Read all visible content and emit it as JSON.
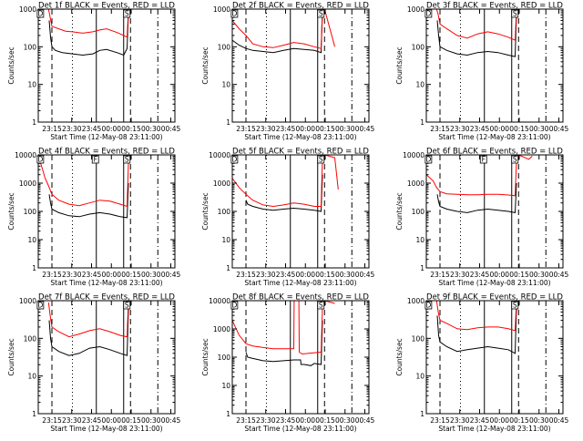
{
  "figure": {
    "ylabel": "Counts/sec",
    "xlabel": "Start Time (12-May-08 23:11:00)",
    "x_tick_labels": [
      "23:15",
      "23:30",
      "23:45",
      "00:00",
      "00:15",
      "00:30",
      "00:45"
    ],
    "y_tick_labels": [
      "1",
      "10",
      "100",
      "1000",
      "10000"
    ],
    "marker_labels": [
      "D",
      "F",
      "S"
    ],
    "colors": {
      "events": "#000000",
      "lld": "#ff0000",
      "axes": "#000000",
      "background": "#ffffff"
    }
  },
  "chart_data": [
    {
      "type": "line",
      "title": "Det 1f BLACK = Events, RED = LLD",
      "ylim": [
        1,
        1000
      ],
      "yscale": "log",
      "xlim_min": [
        0,
        40
      ],
      "markers_min": {
        "dashed": [
          4,
          27
        ],
        "dotted": [
          10,
          10
        ],
        "solid": [
          17,
          25
        ],
        "dashdot": [
          35
        ]
      },
      "series": [
        {
          "name": "BLACK = Events",
          "x": [
            3.2,
            3.6,
            4,
            5,
            7,
            10,
            13,
            16,
            18,
            20,
            23,
            25,
            26,
            26.4
          ],
          "values": [
            500,
            180,
            100,
            80,
            70,
            65,
            60,
            65,
            80,
            85,
            70,
            60,
            90,
            800
          ]
        },
        {
          "name": "RED = LLD",
          "x": [
            3,
            3.5,
            4,
            6,
            8,
            10,
            13,
            16,
            18,
            20,
            23,
            25,
            26,
            26.4
          ],
          "values": [
            1000,
            600,
            350,
            300,
            260,
            250,
            230,
            250,
            280,
            300,
            240,
            200,
            180,
            900
          ]
        }
      ]
    },
    {
      "type": "line",
      "title": "Det 2f BLACK = Events, RED = LLD",
      "ylim": [
        1,
        1000
      ],
      "yscale": "log",
      "xlim_min": [
        0,
        40
      ],
      "markers_min": {
        "dashed": [
          4,
          27
        ],
        "dotted": [
          10,
          10
        ],
        "solid": [
          17,
          25
        ],
        "dashdot": [
          35
        ]
      },
      "series": [
        {
          "name": "BLACK = Events",
          "x": [
            0,
            2,
            4,
            6,
            9,
            12,
            15,
            18,
            21,
            24,
            26,
            26.4
          ],
          "values": [
            150,
            110,
            90,
            80,
            75,
            70,
            80,
            90,
            85,
            80,
            70,
            900
          ]
        },
        {
          "name": "RED = LLD",
          "x": [
            0,
            2,
            4,
            6,
            9,
            12,
            15,
            18,
            21,
            24,
            26,
            26.4,
            27,
            30
          ],
          "values": [
            500,
            300,
            200,
            120,
            100,
            95,
            110,
            130,
            120,
            100,
            90,
            1000,
            1000,
            100
          ]
        }
      ]
    },
    {
      "type": "line",
      "title": "Det 3f BLACK = Events, RED = LLD",
      "ylim": [
        1,
        1000
      ],
      "yscale": "log",
      "xlim_min": [
        0,
        40
      ],
      "markers_min": {
        "dashed": [
          4,
          27
        ],
        "dotted": [
          10,
          10
        ],
        "solid": [
          17,
          25
        ],
        "dashdot": [
          35
        ]
      },
      "series": [
        {
          "name": "BLACK = Events",
          "x": [
            3.2,
            3.6,
            4,
            6,
            9,
            12,
            15,
            18,
            21,
            24,
            26,
            26.4
          ],
          "values": [
            500,
            200,
            100,
            80,
            65,
            60,
            70,
            75,
            70,
            60,
            55,
            800
          ]
        },
        {
          "name": "RED = LLD",
          "x": [
            3,
            3.5,
            4,
            6,
            9,
            12,
            15,
            18,
            21,
            24,
            26,
            26.4
          ],
          "values": [
            1000,
            700,
            400,
            300,
            200,
            170,
            220,
            250,
            220,
            180,
            150,
            1000
          ]
        }
      ]
    },
    {
      "type": "line",
      "title": "Det 4f BLACK = Events, RED = LLD",
      "ylim": [
        1,
        10000
      ],
      "yscale": "log",
      "xlim_min": [
        0,
        40
      ],
      "markers_min": {
        "dashed": [
          4,
          27
        ],
        "dotted": [
          10,
          10
        ],
        "solid": [
          17,
          25
        ],
        "dashdot": [
          35
        ]
      },
      "series": [
        {
          "name": "BLACK = Events",
          "x": [
            3.2,
            3.6,
            4,
            6,
            9,
            12,
            15,
            18,
            21,
            24,
            26,
            26.4
          ],
          "values": [
            400,
            200,
            120,
            90,
            70,
            65,
            80,
            90,
            80,
            65,
            60,
            1000
          ]
        },
        {
          "name": "RED = LLD",
          "x": [
            0,
            2,
            3,
            4,
            6,
            9,
            12,
            15,
            18,
            21,
            24,
            26,
            26.4
          ],
          "values": [
            10000,
            1500,
            800,
            400,
            250,
            180,
            160,
            200,
            250,
            230,
            180,
            150,
            5000
          ]
        }
      ]
    },
    {
      "type": "line",
      "title": "Det 5f BLACK = Events, RED = LLD",
      "ylim": [
        1,
        10000
      ],
      "yscale": "log",
      "xlim_min": [
        0,
        40
      ],
      "markers_min": {
        "dashed": [
          4,
          27
        ],
        "dotted": [
          10,
          10
        ],
        "solid": [
          17,
          25
        ],
        "dashdot": [
          35
        ]
      },
      "series": [
        {
          "name": "BLACK = Events",
          "x": [
            4,
            4.5,
            6,
            9,
            12,
            15,
            18,
            21,
            24,
            26,
            26.4
          ],
          "values": [
            250,
            180,
            150,
            120,
            110,
            120,
            130,
            120,
            110,
            100,
            2000
          ]
        },
        {
          "name": "RED = LLD",
          "x": [
            0,
            2,
            4,
            6,
            9,
            12,
            15,
            18,
            21,
            24,
            26,
            26.4,
            27,
            30,
            31
          ],
          "values": [
            1500,
            700,
            400,
            250,
            170,
            150,
            170,
            200,
            180,
            150,
            150,
            8000,
            10000,
            8000,
            600
          ]
        }
      ]
    },
    {
      "type": "line",
      "title": "Det 6f BLACK = Events, RED = LLD",
      "ylim": [
        1,
        10000
      ],
      "yscale": "log",
      "xlim_min": [
        0,
        40
      ],
      "markers_min": {
        "dashed": [
          4,
          27
        ],
        "dotted": [
          10,
          10
        ],
        "solid": [
          17,
          25
        ],
        "dashdot": [
          35
        ]
      },
      "series": [
        {
          "name": "BLACK = Events",
          "x": [
            3.2,
            3.6,
            4,
            6,
            9,
            12,
            15,
            18,
            21,
            24,
            26,
            26.4
          ],
          "values": [
            400,
            220,
            150,
            120,
            100,
            90,
            110,
            120,
            110,
            100,
            90,
            1000
          ]
        },
        {
          "name": "RED = LLD",
          "x": [
            0,
            2,
            3,
            4,
            6,
            9,
            12,
            15,
            18,
            21,
            24,
            26,
            26.4,
            27,
            30,
            31
          ],
          "values": [
            2000,
            1200,
            700,
            500,
            420,
            400,
            390,
            390,
            400,
            400,
            380,
            360,
            6000,
            10000,
            7000,
            9000
          ]
        }
      ]
    },
    {
      "type": "line",
      "title": "Det 7f BLACK = Events, RED = LLD",
      "ylim": [
        1,
        1000
      ],
      "yscale": "log",
      "xlim_min": [
        0,
        40
      ],
      "markers_min": {
        "dashed": [
          4,
          27
        ],
        "dotted": [
          10,
          10
        ],
        "solid": [
          17,
          25
        ],
        "dashdot": [
          35
        ]
      },
      "series": [
        {
          "name": "BLACK = Events",
          "x": [
            3.2,
            3.6,
            4,
            6,
            9,
            12,
            15,
            18,
            21,
            24,
            26,
            26.4
          ],
          "values": [
            300,
            100,
            60,
            45,
            35,
            40,
            55,
            60,
            50,
            40,
            35,
            600
          ]
        },
        {
          "name": "RED = LLD",
          "x": [
            3,
            3.5,
            4,
            6,
            9,
            12,
            15,
            18,
            21,
            24,
            26,
            26.4
          ],
          "values": [
            900,
            400,
            200,
            150,
            110,
            130,
            160,
            180,
            150,
            120,
            110,
            1000
          ]
        }
      ]
    },
    {
      "type": "line",
      "title": "Det 8f BLACK = Events, RED = LLD",
      "ylim": [
        1,
        10000
      ],
      "yscale": "log",
      "xlim_min": [
        0,
        40
      ],
      "markers_min": {
        "dashed": [
          4,
          27
        ],
        "dotted": [
          10,
          10
        ],
        "solid": [
          17,
          25
        ],
        "dashdot": [
          35
        ]
      },
      "series": [
        {
          "name": "BLACK = Events",
          "x": [
            4,
            4.5,
            6,
            9,
            12,
            15,
            18,
            20,
            20.1,
            21,
            23,
            24,
            26,
            26.4
          ],
          "values": [
            150,
            100,
            90,
            75,
            70,
            75,
            80,
            80,
            55,
            55,
            50,
            60,
            55,
            2000
          ]
        },
        {
          "name": "RED = LLD",
          "x": [
            0,
            2,
            4,
            6,
            9,
            12,
            15,
            18,
            18.1,
            19.5,
            19.6,
            20.5,
            23,
            26,
            26.4,
            27,
            30
          ],
          "values": [
            2000,
            600,
            300,
            250,
            220,
            200,
            200,
            200,
            10000,
            10000,
            150,
            130,
            140,
            150,
            6000,
            10000,
            8000
          ]
        }
      ]
    },
    {
      "type": "line",
      "title": "Det 9f BLACK = Events, RED = LLD",
      "ylim": [
        1,
        1000
      ],
      "yscale": "log",
      "xlim_min": [
        0,
        40
      ],
      "markers_min": {
        "dashed": [
          4,
          27
        ],
        "dotted": [
          10,
          10
        ],
        "solid": [
          17,
          25
        ],
        "dashdot": [
          35
        ]
      },
      "series": [
        {
          "name": "BLACK = Events",
          "x": [
            3.2,
            3.6,
            4,
            6,
            9,
            12,
            15,
            18,
            21,
            24,
            26,
            26.4
          ],
          "values": [
            400,
            120,
            80,
            60,
            45,
            50,
            55,
            60,
            55,
            50,
            40,
            700
          ]
        },
        {
          "name": "RED = LLD",
          "x": [
            3,
            3.5,
            4,
            6,
            9,
            12,
            15,
            18,
            21,
            24,
            26,
            26.4
          ],
          "values": [
            1000,
            500,
            300,
            250,
            180,
            170,
            190,
            200,
            200,
            180,
            160,
            1000
          ]
        }
      ]
    }
  ]
}
